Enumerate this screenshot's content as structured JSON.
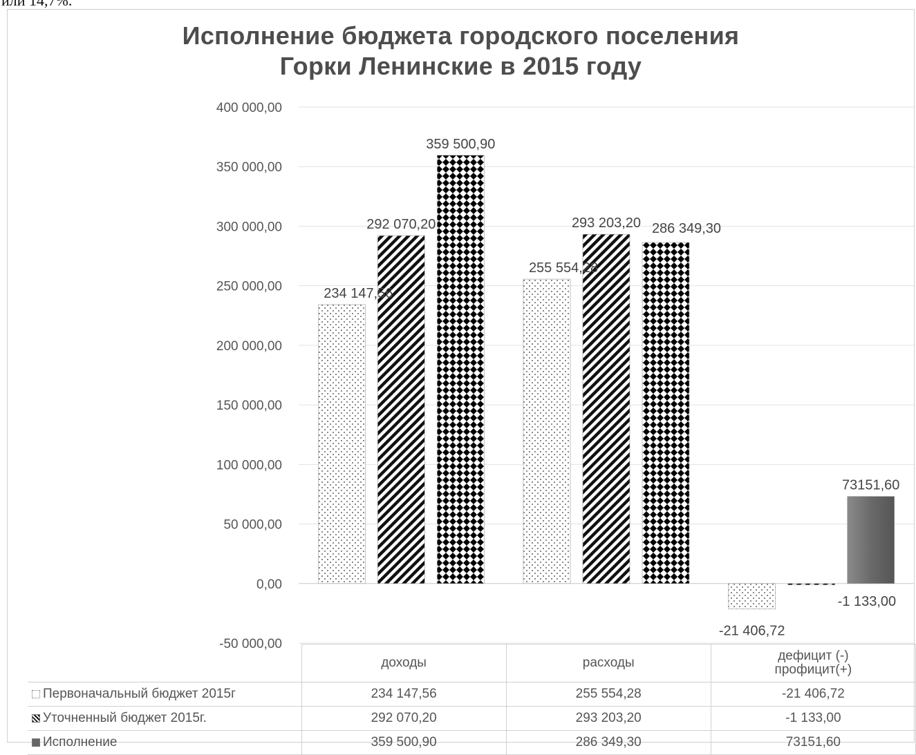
{
  "top_text": "или 14,7%.",
  "chart_data": {
    "type": "bar",
    "title_line1": "Исполнение бюджета городского поселения",
    "title_line2": "Горки Ленинские  в 2015 году",
    "categories": [
      "доходы",
      "расходы",
      "дефицит (-) профицит(+)"
    ],
    "series": [
      {
        "name": "Первоначальный бюджет 2015г",
        "values": [
          234147.56,
          255554.28,
          -21406.72
        ],
        "labels": [
          "234 147,56",
          "255 554,28",
          "-21 406,72"
        ],
        "pattern": "sparse-dots"
      },
      {
        "name": "Уточненный бюджет 2015г.",
        "values": [
          292070.2,
          293203.2,
          -1133.0
        ],
        "labels": [
          "292 070,20",
          "293 203,20",
          "-1 133,00"
        ],
        "pattern": "diagonal-stripes"
      },
      {
        "name": "Исполнение",
        "values": [
          359500.9,
          286349.3,
          73151.6
        ],
        "labels": [
          "359 500,90",
          "286 349,30",
          "73151,60"
        ],
        "pattern": "dense-diamonds",
        "color": "#6d6d6d"
      }
    ],
    "ylim": [
      -50000,
      400000
    ],
    "yticks": [
      400000,
      350000,
      300000,
      250000,
      200000,
      150000,
      100000,
      50000,
      0,
      -50000
    ],
    "ytick_labels": [
      "400 000,00",
      "350 000,00",
      "300 000,00",
      "250 000,00",
      "200 000,00",
      "150 000,00",
      "100 000,00",
      "50 000,00",
      "0,00",
      "-50 000,00"
    ],
    "grid": true,
    "legend": "data-table"
  },
  "table": {
    "header": [
      "доходы",
      "расходы",
      "дефицит (-)",
      "профицит(+)"
    ],
    "rows": [
      {
        "label": "Первоначальный бюджет 2015г",
        "cells": [
          "234 147,56",
          "255 554,28",
          "-21 406,72"
        ]
      },
      {
        "label": "Уточненный бюджет 2015г.",
        "cells": [
          "292 070,20",
          "293 203,20",
          "-1 133,00"
        ]
      },
      {
        "label": "Исполнение",
        "cells": [
          "359 500,90",
          "286 349,30",
          "73151,60"
        ]
      }
    ]
  }
}
